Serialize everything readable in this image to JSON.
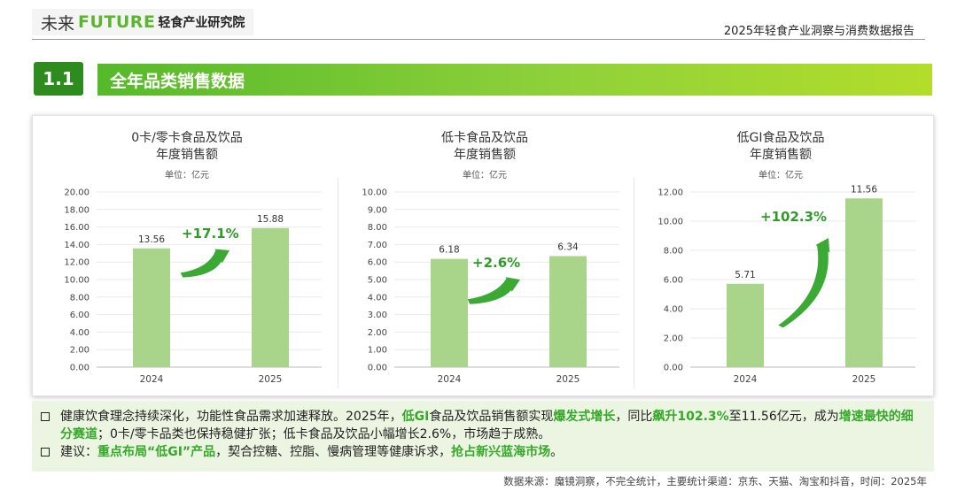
{
  "header": {
    "logo_part1": "未来",
    "logo_part2": "FUTURE",
    "logo_part3": "轻食产业研究院",
    "report_title": "2025年轻食产业洞察与消费数据报告"
  },
  "section": {
    "number": "1.1",
    "title": "全年品类销售数据"
  },
  "colors": {
    "bar": "#a8d58a",
    "accent": "#2e8b1e",
    "growth_text": "#2f9a2a",
    "arrow": "#3aaa35"
  },
  "chart_data": [
    {
      "type": "bar",
      "title": "0卡/零卡食品及饮品",
      "subtitle": "年度销售额",
      "unit": "单位：亿元",
      "categories": [
        "2024",
        "2025"
      ],
      "values": [
        13.56,
        15.88
      ],
      "value_labels": [
        "13.56",
        "15.88"
      ],
      "ylim": [
        0,
        20
      ],
      "y_ticks": [
        "0.00",
        "2.00",
        "4.00",
        "6.00",
        "8.00",
        "10.00",
        "12.00",
        "14.00",
        "16.00",
        "18.00",
        "20.00"
      ],
      "grid": true,
      "growth": "+17.1%"
    },
    {
      "type": "bar",
      "title": "低卡食品及饮品",
      "subtitle": "年度销售额",
      "unit": "单位：亿元",
      "categories": [
        "2024",
        "2025"
      ],
      "values": [
        6.18,
        6.34
      ],
      "value_labels": [
        "6.18",
        "6.34"
      ],
      "ylim": [
        0,
        10
      ],
      "y_ticks": [
        "0.00",
        "1.00",
        "2.00",
        "3.00",
        "4.00",
        "5.00",
        "6.00",
        "7.00",
        "8.00",
        "9.00",
        "10.00"
      ],
      "grid": true,
      "growth": "+2.6%"
    },
    {
      "type": "bar",
      "title": "低GI食品及饮品",
      "subtitle": "年度销售额",
      "unit": "单位：亿元",
      "categories": [
        "2024",
        "2025"
      ],
      "values": [
        5.71,
        11.56
      ],
      "value_labels": [
        "5.71",
        "11.56"
      ],
      "ylim": [
        0,
        12
      ],
      "y_ticks": [
        "0.00",
        "2.00",
        "4.00",
        "6.00",
        "8.00",
        "10.00",
        "12.00"
      ],
      "grid": true,
      "growth": "+102.3%"
    }
  ],
  "summary": {
    "line1": [
      {
        "t": "健康饮食理念持续深化，功能性食品需求加速释放。2025年，",
        "h": false
      },
      {
        "t": "低GI",
        "h": true
      },
      {
        "t": "食品及饮品销售额实现",
        "h": false
      },
      {
        "t": "爆发式增长",
        "h": true
      },
      {
        "t": "，同比",
        "h": false
      },
      {
        "t": "飙升102.3%",
        "h": true
      },
      {
        "t": "至11.56亿元，成为",
        "h": false
      },
      {
        "t": "增速最快的细分赛道",
        "h": true
      },
      {
        "t": "；0卡/零卡品类也保持稳健扩张；低卡食品及饮品小幅增长2.6%，市场趋于成熟。",
        "h": false
      }
    ],
    "line2": [
      {
        "t": "建议：",
        "h": false
      },
      {
        "t": "重点布局“低GI”产品",
        "h": true
      },
      {
        "t": "，契合控糖、控脂、慢病管理等健康诉求，",
        "h": false
      },
      {
        "t": "抢占新兴蓝海市场",
        "h": true
      },
      {
        "t": "。",
        "h": false
      }
    ]
  },
  "source": "数据来源：魔镜洞察，不完全统计，主要统计渠道：京东、天猫、淘宝和抖音，时间：2025年"
}
